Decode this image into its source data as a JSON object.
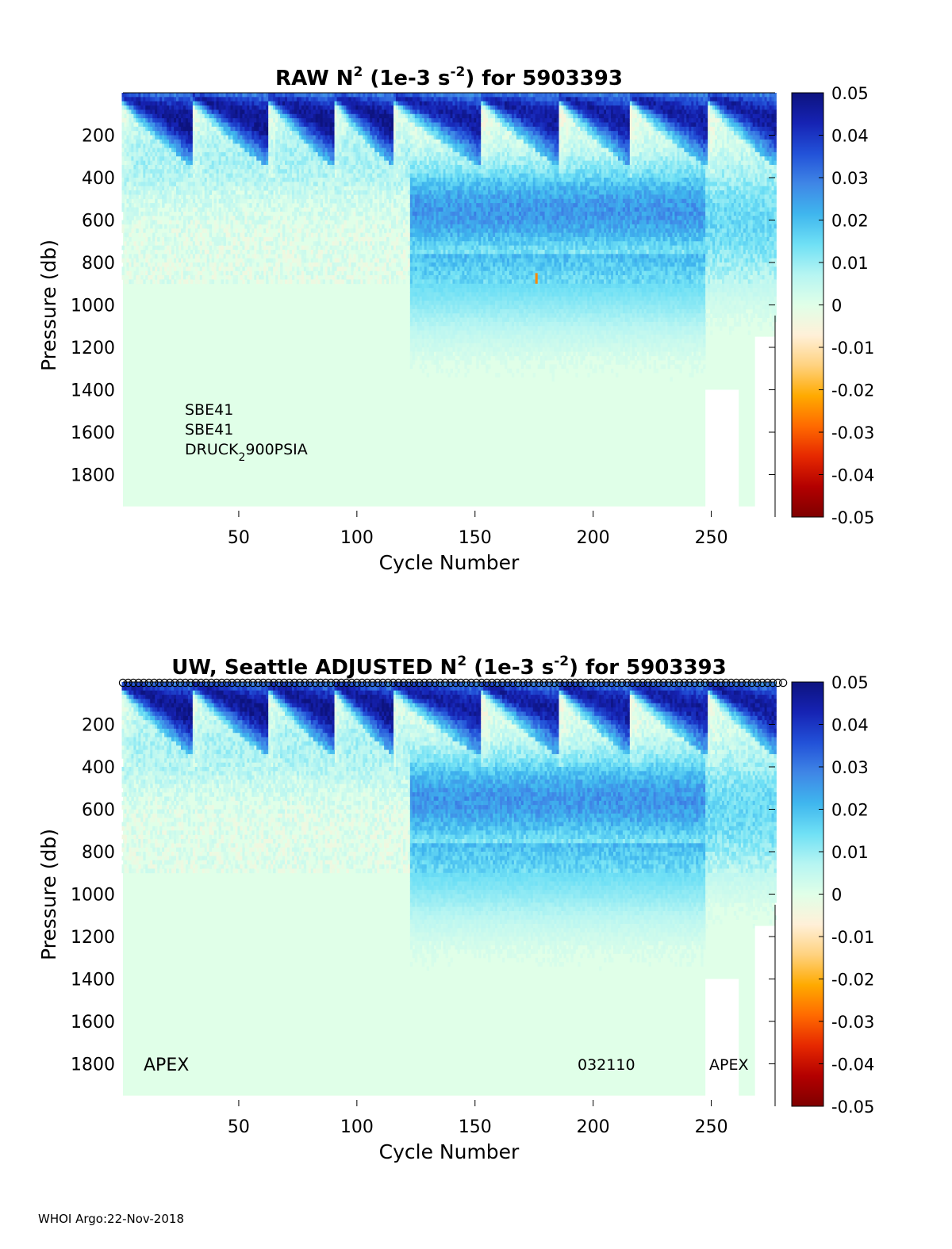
{
  "footer": "WHOI Argo:22-Nov-2018",
  "colors": {
    "ramp": [
      "#7f0000",
      "#b30000",
      "#e62800",
      "#ff6a00",
      "#ffaa00",
      "#ffd27f",
      "#fff0d8",
      "#e0ffe8",
      "#b6f5f2",
      "#6fe0f5",
      "#3fb6ee",
      "#3f86e6",
      "#2251d8",
      "#1623b4",
      "#0d137f"
    ],
    "background": "#e0ffe8"
  },
  "chart_data": [
    {
      "type": "heatmap",
      "title": {
        "pre": "RAW N",
        "sup1": "2",
        "mid": " (1e-3 s",
        "sup2": "-2",
        "post": ") for 5903393"
      },
      "xlabel": "Cycle Number",
      "ylabel": "Pressure (db)",
      "xlim": [
        1,
        277
      ],
      "ylim": [
        2000,
        0
      ],
      "xticks": [
        50,
        100,
        150,
        200,
        250
      ],
      "yticks": [
        200,
        400,
        600,
        800,
        1000,
        1200,
        1400,
        1600,
        1800
      ],
      "clim": [
        -0.05,
        0.05
      ],
      "colorbar_ticks": [
        0.05,
        0.04,
        0.03,
        0.02,
        0.01,
        0,
        -0.01,
        -0.02,
        -0.03,
        -0.04,
        -0.05
      ],
      "annotations": [
        "SBE41",
        "SBE41",
        "DRUCK_2900PSIA"
      ],
      "sensor_text": {
        "pre": "DRUCK",
        "sub": "2",
        "post": "900PSIA"
      },
      "max_depth_by_cycle": [
        {
          "from": 1,
          "to": 247,
          "depth": 1950
        },
        {
          "from": 248,
          "to": 261,
          "depth": 1400
        },
        {
          "from": 262,
          "to": 268,
          "depth": 1950
        },
        {
          "from": 269,
          "to": 277,
          "depth": 1150
        }
      ],
      "features": [
        {
          "kind": "surface_stratification",
          "cycles": [
            1,
            277
          ],
          "value": 0.04,
          "depth": [
            10,
            150
          ]
        },
        {
          "kind": "thermocline",
          "cycles": [
            123,
            247
          ],
          "value": 0.025,
          "depth": [
            400,
            800
          ]
        },
        {
          "kind": "negative_spike",
          "cycle": 176,
          "depth": [
            850,
            900
          ],
          "value": -0.025
        }
      ]
    },
    {
      "type": "heatmap",
      "title": {
        "pre": "UW, Seattle  ADJUSTED N",
        "sup1": "2",
        "mid": " (1e-3 s",
        "sup2": "-2",
        "post": ") for 5903393"
      },
      "xlabel": "Cycle Number",
      "ylabel": "Pressure (db)",
      "xlim": [
        1,
        277
      ],
      "ylim": [
        2000,
        0
      ],
      "xticks": [
        50,
        100,
        150,
        200,
        250
      ],
      "yticks": [
        200,
        400,
        600,
        800,
        1000,
        1200,
        1400,
        1600,
        1800
      ],
      "clim": [
        -0.05,
        0.05
      ],
      "colorbar_ticks": [
        0.05,
        0.04,
        0.03,
        0.02,
        0.01,
        0,
        -0.01,
        -0.02,
        -0.03,
        -0.04,
        -0.05
      ],
      "annotations": [
        "APEX",
        "032110",
        "APEX"
      ],
      "max_depth_by_cycle": [
        {
          "from": 1,
          "to": 247,
          "depth": 1950
        },
        {
          "from": 248,
          "to": 261,
          "depth": 1400
        },
        {
          "from": 262,
          "to": 268,
          "depth": 1950
        },
        {
          "from": 269,
          "to": 277,
          "depth": 1150
        }
      ],
      "features": [
        {
          "kind": "surface_stratification",
          "cycles": [
            1,
            277
          ],
          "value": 0.04,
          "depth": [
            10,
            150
          ]
        },
        {
          "kind": "thermocline",
          "cycles": [
            123,
            247
          ],
          "value": 0.025,
          "depth": [
            400,
            800
          ]
        }
      ]
    }
  ]
}
